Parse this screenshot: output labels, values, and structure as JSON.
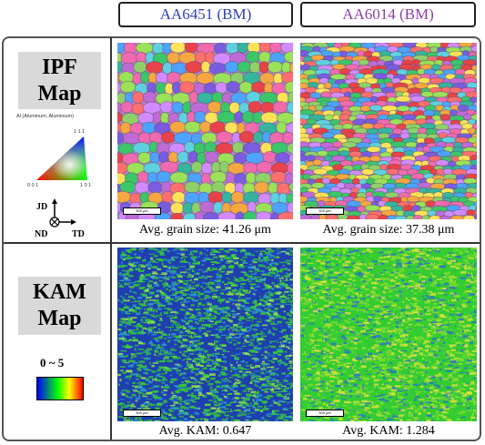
{
  "headers": {
    "left": "AA6451 (BM)",
    "right": "AA6014 (BM)"
  },
  "ipf": {
    "label_line1": "IPF",
    "label_line2": "Map",
    "legend_title": "Al (Aluminum, Aluminium)",
    "corner_111": "1 1 1",
    "corner_001": "0 0 1",
    "corner_101": "1 0 1",
    "axis_jd": "JD",
    "axis_nd": "ND",
    "axis_td": "TD",
    "caption_left": "Avg. grain size: 41.26 μm",
    "caption_right": "Avg. grain size: 37.38 μm",
    "scale_label": "300 μm"
  },
  "kam": {
    "label_line1": "KAM",
    "label_line2": "Map",
    "range": "0 ~ 5",
    "caption_left": "Avg. KAM: 0.647",
    "caption_right": "Avg. KAM: 1.284",
    "scale_label": "300 μm"
  },
  "colors": {
    "left_header": "#2f3fb8",
    "right_header": "#8c3fa6",
    "kam_low": "#1f3fb0",
    "kam_mid": "#33cc33",
    "kam_high": "#e0e040"
  }
}
